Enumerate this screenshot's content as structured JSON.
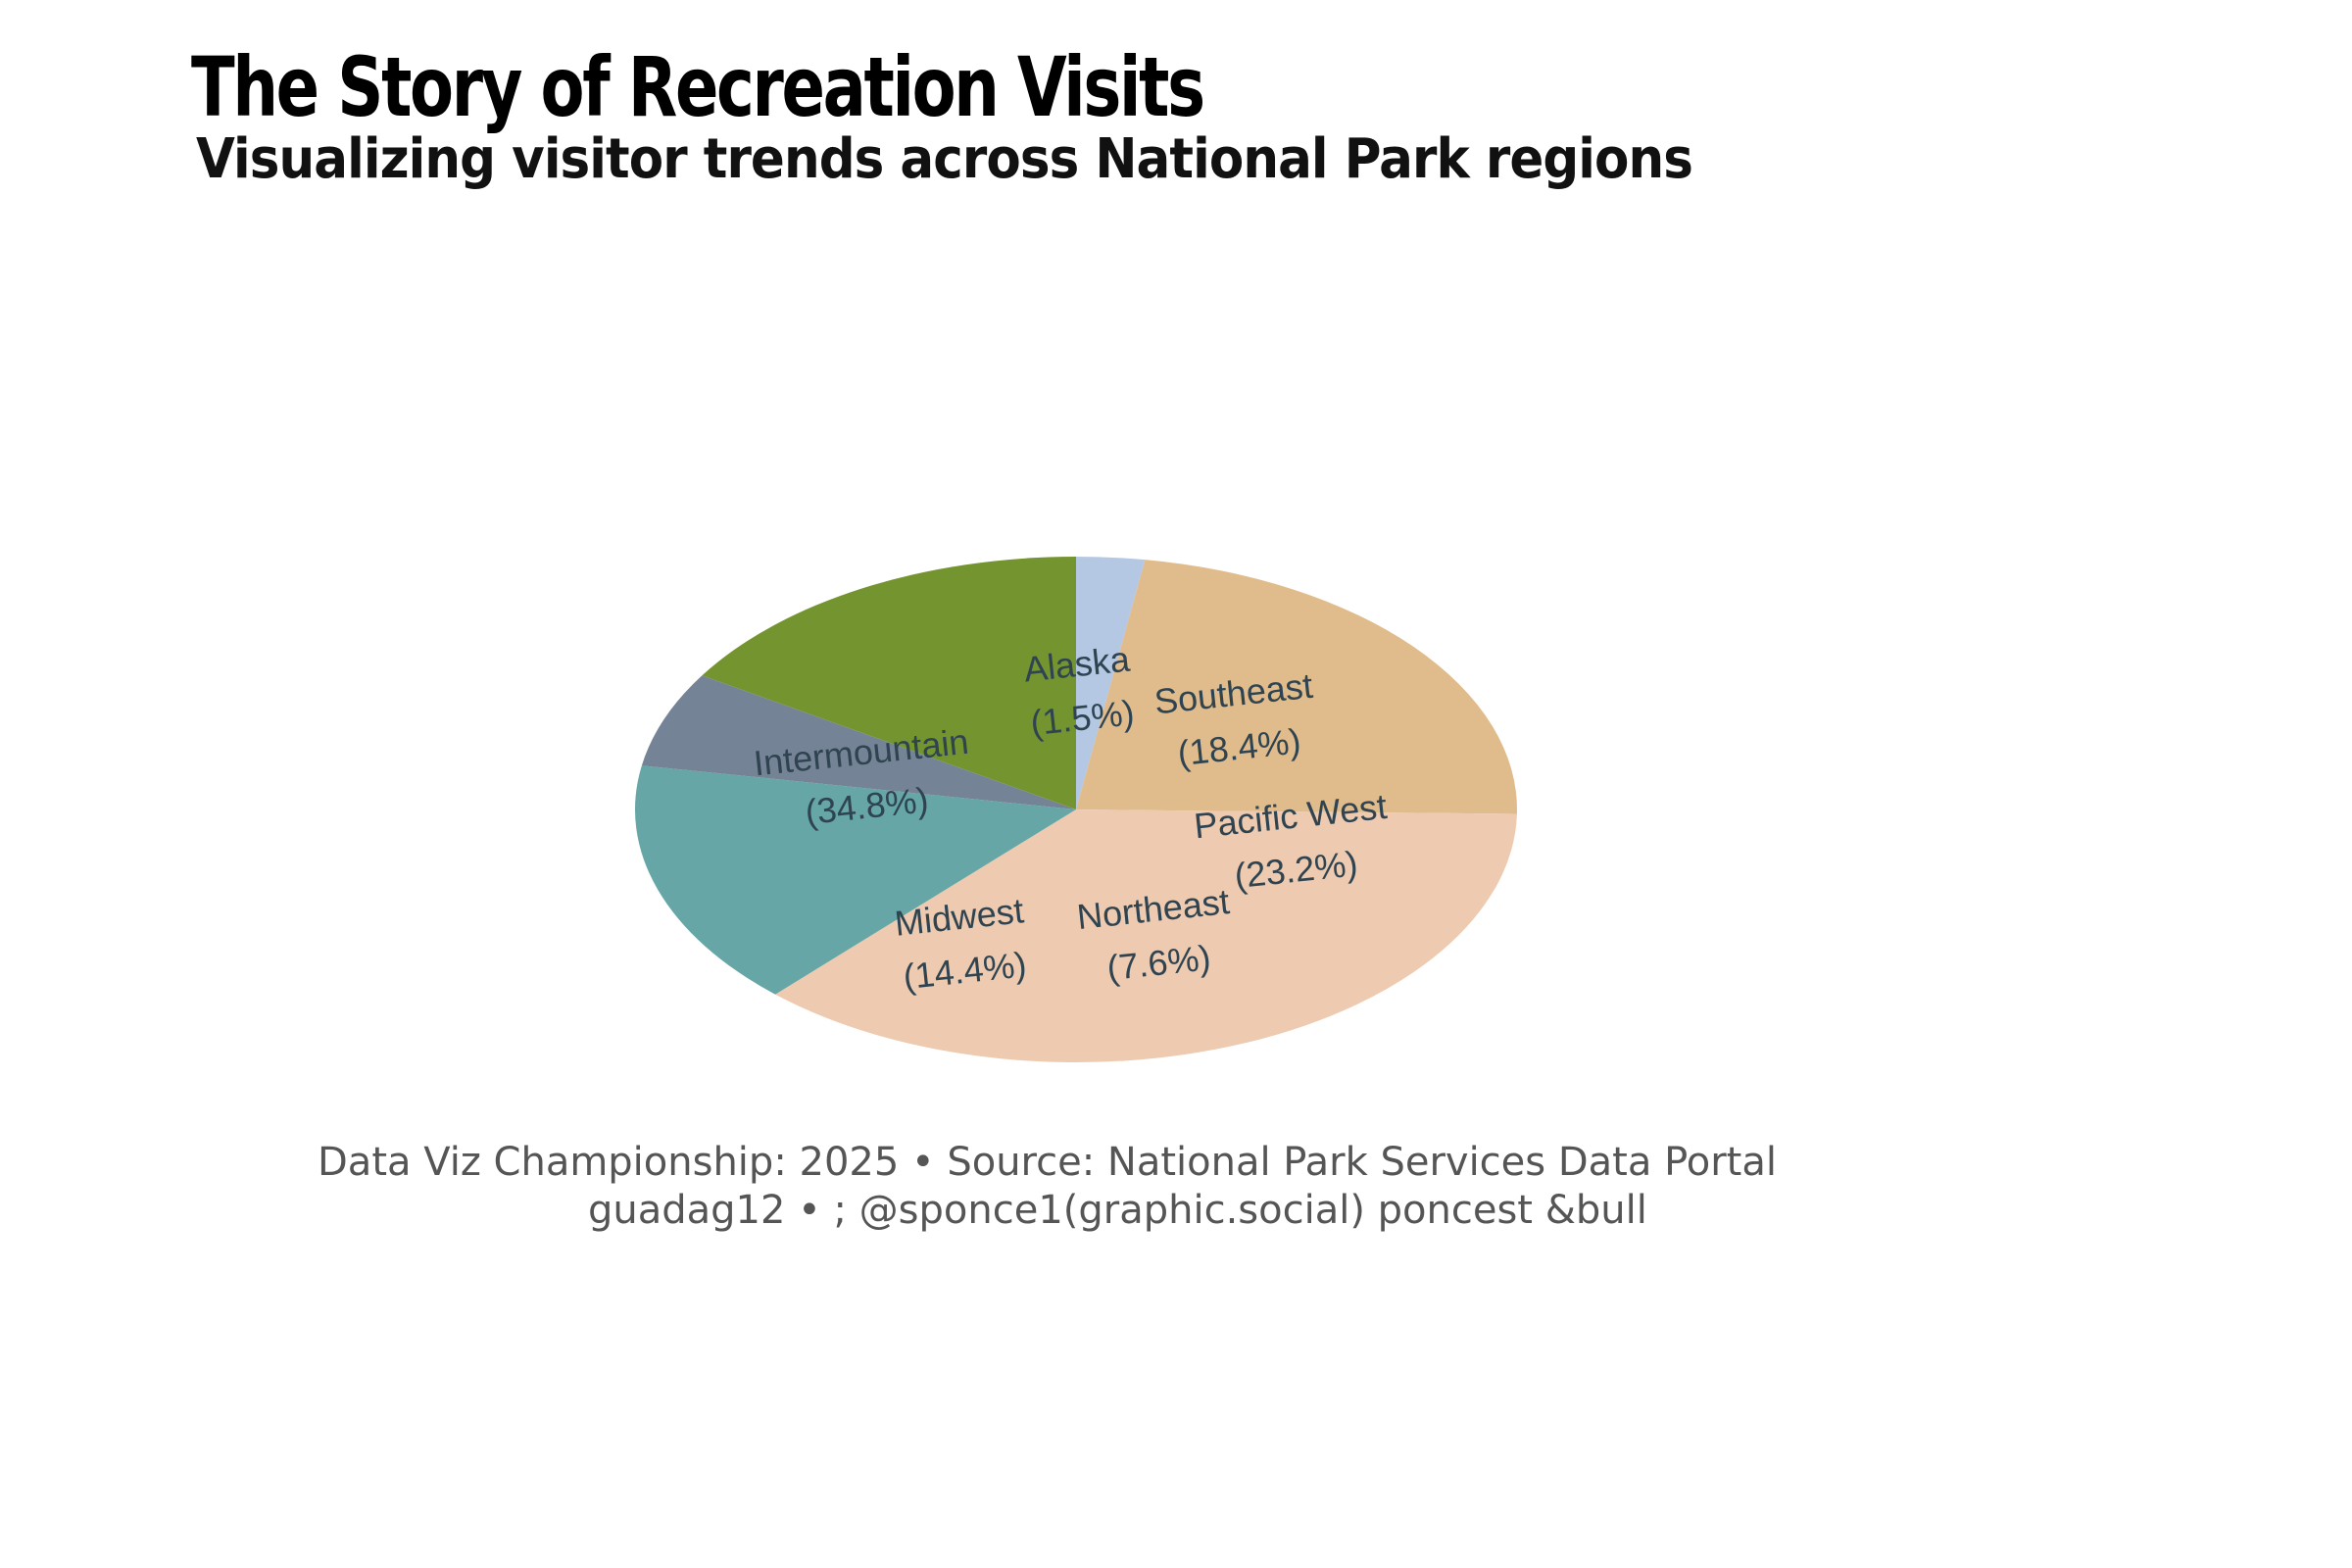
{
  "header": {
    "title": "The Story of Recreation Visits",
    "subtitle": "Visualizing visitor trends across National Park regions"
  },
  "footer": {
    "line1": "Data Viz Championship: 2025 • Source: National Park Services Data Portal",
    "line2": "  guadag12 • ; @sponce1(graphic.social)   poncest &bull"
  },
  "chart_data": {
    "type": "pie",
    "title": "",
    "slices": [
      {
        "label": "Alaska",
        "value": 1.5,
        "color": "#b4c7e3"
      },
      {
        "label": "Southeast",
        "value": 18.4,
        "color": "#e0bc8c"
      },
      {
        "label": "Pacific West",
        "value": 23.2,
        "color": "#eecbb0"
      },
      {
        "label": "Northeast",
        "value": 7.6,
        "color": "#eecbb0"
      },
      {
        "label": "Midwest",
        "value": 14.4,
        "color": "#66a6a6"
      },
      {
        "label": "Intermountain",
        "value": 34.8,
        "color": "#748496"
      }
    ],
    "extra_wedge_color": "#749430",
    "label_format": "{label}\n({value}%)",
    "label_rotation_deg": -6,
    "legend": "none"
  }
}
